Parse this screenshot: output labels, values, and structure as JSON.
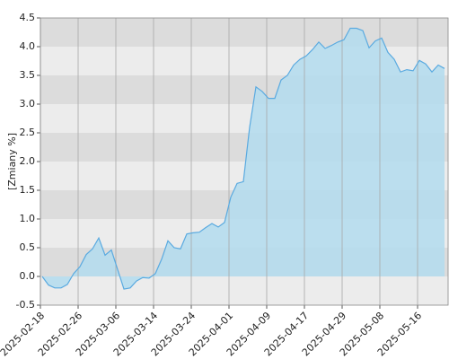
{
  "chart_data": {
    "type": "area",
    "y_label": "[Zmiany %]",
    "categories": [
      "2025-02-18",
      null,
      null,
      null,
      null,
      null,
      "2025-02-26",
      null,
      null,
      null,
      null,
      null,
      "2025-03-06",
      null,
      null,
      null,
      null,
      null,
      "2025-03-14",
      null,
      null,
      null,
      null,
      null,
      "2025-03-24",
      null,
      null,
      null,
      null,
      null,
      "2025-04-01",
      null,
      null,
      null,
      null,
      null,
      "2025-04-09",
      null,
      null,
      null,
      null,
      null,
      "2025-04-17",
      null,
      null,
      null,
      null,
      null,
      "2025-04-29",
      null,
      null,
      null,
      null,
      null,
      "2025-05-08",
      null,
      null,
      null,
      null,
      null,
      "2025-05-16",
      null,
      null,
      null,
      null
    ],
    "values": [
      0.0,
      -0.15,
      -0.2,
      -0.2,
      -0.14,
      0.05,
      0.17,
      0.38,
      0.48,
      0.67,
      0.37,
      0.46,
      0.12,
      -0.22,
      -0.2,
      -0.08,
      -0.02,
      -0.03,
      0.05,
      0.3,
      0.62,
      0.5,
      0.48,
      0.74,
      0.76,
      0.77,
      0.85,
      0.92,
      0.86,
      0.94,
      1.38,
      1.62,
      1.65,
      2.6,
      3.3,
      3.22,
      3.1,
      3.1,
      3.42,
      3.5,
      3.68,
      3.78,
      3.84,
      3.95,
      4.08,
      3.97,
      4.02,
      4.08,
      4.12,
      4.32,
      4.32,
      4.28,
      3.98,
      4.1,
      4.15,
      3.9,
      3.78,
      3.56,
      3.6,
      3.58,
      3.76,
      3.7,
      3.56,
      3.68,
      3.62
    ],
    "color": "#5aaae0",
    "fill": "#b3dcee",
    "ylim": [
      -0.5,
      4.5
    ],
    "yticks": [
      -0.5,
      {
        "value": 0,
        "label": "0.0"
      },
      0.5,
      {
        "value": 1,
        "label": "1.0"
      },
      1.5,
      {
        "value": 2,
        "label": "2.0"
      },
      2.5,
      {
        "value": 3,
        "label": "3.0"
      },
      3.5,
      {
        "value": 4,
        "label": "4.0"
      },
      4.5
    ],
    "grid": true
  }
}
